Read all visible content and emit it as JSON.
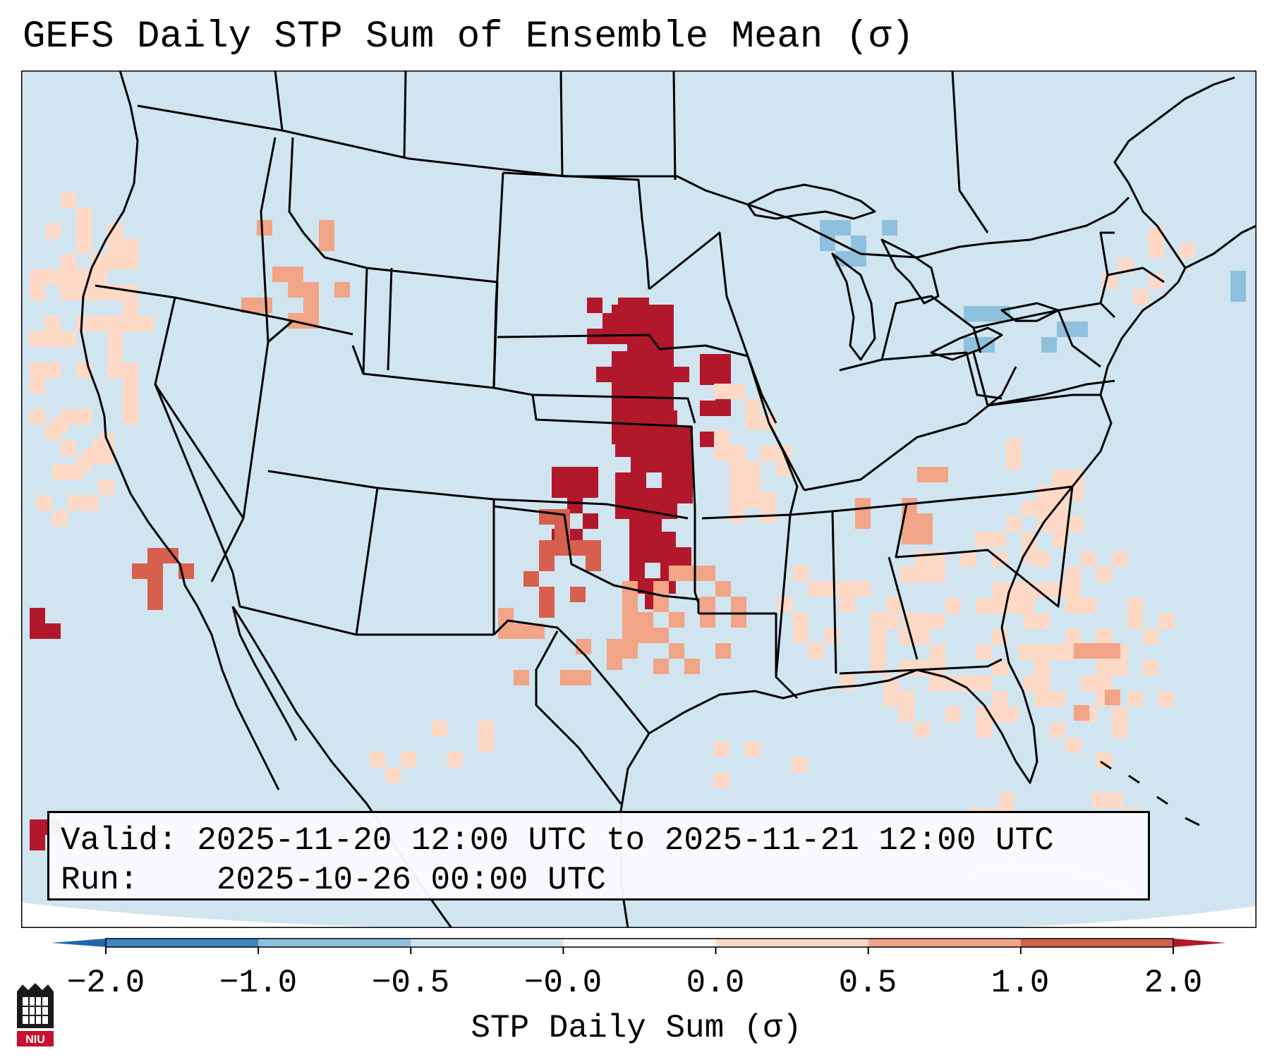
{
  "title": "GEFS Daily STP Sum of Ensemble Mean (σ)",
  "info": {
    "valid_label": "Valid:",
    "valid_value": "2025-11-20 12:00 UTC to 2025-11-21 12:00 UTC",
    "run_label": "Run:",
    "run_value": "2025-10-26 00:00 UTC"
  },
  "colorbar": {
    "label": "STP Daily Sum (σ)",
    "ticks": [
      "−2.0",
      "−1.0",
      "−0.5",
      "−0.0",
      "0.0",
      "0.5",
      "1.0",
      "2.0"
    ],
    "bins": [
      {
        "color": "#3f86c0"
      },
      {
        "color": "#8fc0dd"
      },
      {
        "color": "#d1e5f0"
      },
      {
        "color": "#f7f7f7"
      },
      {
        "color": "#fdd9c6"
      },
      {
        "color": "#f1a486"
      },
      {
        "color": "#d6604d"
      }
    ],
    "under_color": "#2166ac",
    "over_color": "#b2182b"
  },
  "map": {
    "background_color": "#d1e5f0",
    "highlight_region": "Central Plains (Nebraska, Kansas, Oklahoma)",
    "highlight_color": "#b2182b"
  },
  "logo": {
    "text": "NIU"
  }
}
